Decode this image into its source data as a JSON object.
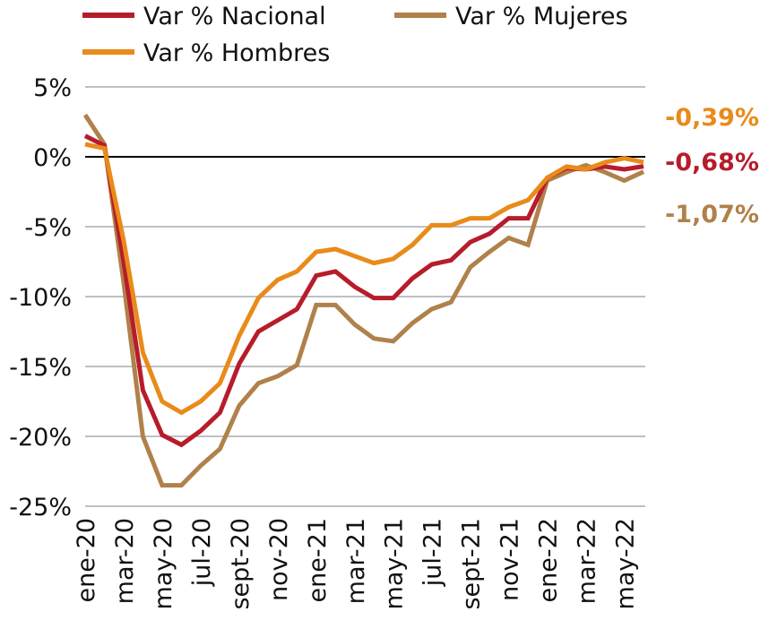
{
  "chart_data": {
    "type": "line",
    "title": "",
    "xlabel": "",
    "ylabel": "",
    "ylim": [
      -25,
      5
    ],
    "yticks": [
      5,
      0,
      -5,
      -10,
      -15,
      -20,
      -25
    ],
    "ytick_labels": [
      "5%",
      "0%",
      "-5%",
      "-10%",
      "-15%",
      "-20%",
      "-25%"
    ],
    "grid": true,
    "legend_position": "top",
    "x": [
      "ene-20",
      "feb-20",
      "mar-20",
      "abr-20",
      "may-20",
      "jun-20",
      "jul-20",
      "ago-20",
      "sept-20",
      "oct-20",
      "nov-20",
      "dic-20",
      "ene-21",
      "feb-21",
      "mar-21",
      "abr-21",
      "may-21",
      "jun-21",
      "jul-21",
      "ago-21",
      "sept-21",
      "oct-21",
      "nov-21",
      "dic-21",
      "ene-22",
      "feb-22",
      "mar-22",
      "abr-22",
      "may-22",
      "jun-22"
    ],
    "xtick_labels": [
      "ene-20",
      "mar-20",
      "may-20",
      "jul-20",
      "sept-20",
      "nov-20",
      "ene-21",
      "mar-21",
      "may-21",
      "jul-21",
      "sept-21",
      "nov-21",
      "ene-22",
      "mar-22",
      "may-22"
    ],
    "series": [
      {
        "name": "Var % Nacional",
        "color": "#b71c2b",
        "end_label": "-0,68%",
        "values": [
          1.5,
          0.8,
          -7.5,
          -16.7,
          -19.9,
          -20.6,
          -19.6,
          -18.3,
          -14.8,
          -12.5,
          -11.7,
          -10.9,
          -8.5,
          -8.2,
          -9.3,
          -10.1,
          -10.1,
          -8.7,
          -7.7,
          -7.4,
          -6.1,
          -5.5,
          -4.4,
          -4.4,
          -1.5,
          -0.8,
          -0.9,
          -0.7,
          -0.9,
          -0.68
        ]
      },
      {
        "name": "Var % Hombres",
        "color": "#e98b1a",
        "end_label": "-0,39%",
        "values": [
          0.9,
          0.6,
          -6.0,
          -14.0,
          -17.5,
          -18.3,
          -17.5,
          -16.2,
          -12.8,
          -10.1,
          -8.8,
          -8.2,
          -6.8,
          -6.6,
          -7.1,
          -7.6,
          -7.3,
          -6.3,
          -4.9,
          -4.9,
          -4.4,
          -4.4,
          -3.6,
          -3.1,
          -1.5,
          -0.7,
          -0.9,
          -0.4,
          -0.1,
          -0.39
        ]
      },
      {
        "name": "Var % Mujeres",
        "color": "#b0814a",
        "end_label": "-1,07%",
        "values": [
          3.0,
          0.9,
          -9.0,
          -20.0,
          -23.5,
          -23.5,
          -22.1,
          -20.9,
          -17.8,
          -16.2,
          -15.7,
          -14.9,
          -10.6,
          -10.6,
          -12.0,
          -13.0,
          -13.2,
          -11.9,
          -10.9,
          -10.4,
          -7.9,
          -6.8,
          -5.8,
          -6.3,
          -1.7,
          -1.1,
          -0.6,
          -1.1,
          -1.7,
          -1.07
        ]
      }
    ]
  }
}
